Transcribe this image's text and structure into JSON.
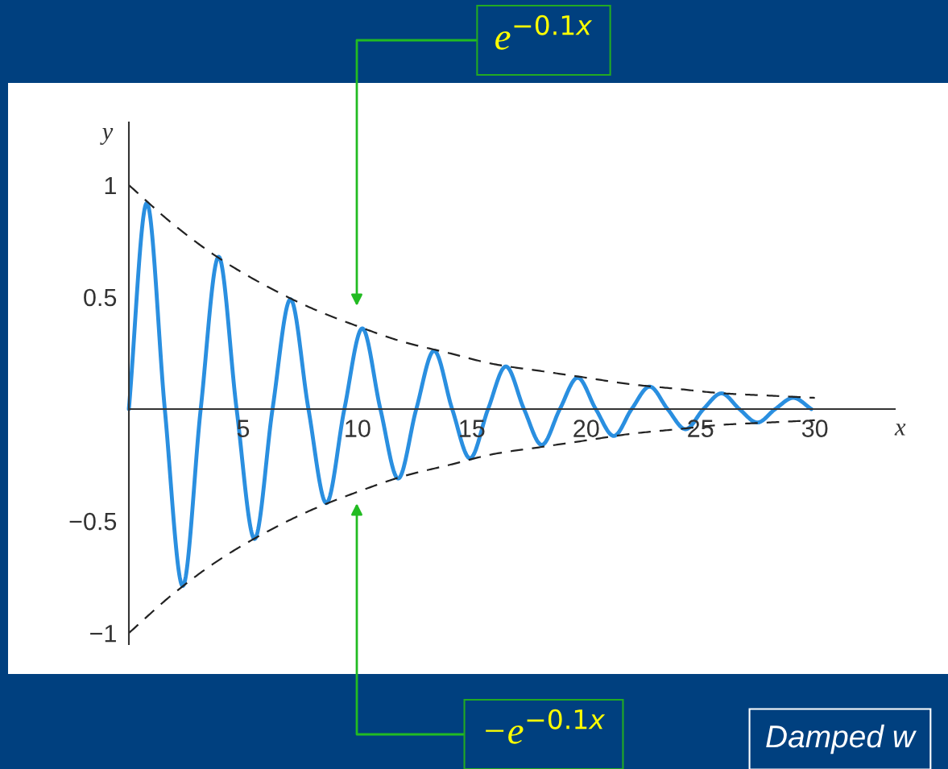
{
  "chart_data": {
    "type": "line",
    "xlabel": "x",
    "ylabel": "y",
    "xlim": [
      0,
      33.5
    ],
    "ylim": [
      -1.05,
      1.28
    ],
    "xticks": [
      5,
      10,
      15,
      20,
      25,
      30
    ],
    "yticks": [
      {
        "value": -1,
        "label": "−1"
      },
      {
        "value": -0.5,
        "label": "−0.5"
      },
      0.5,
      1
    ],
    "grid": false,
    "series": [
      {
        "color": "#2a8fe0",
        "line_style": "solid",
        "x": [
          0,
          0.785,
          1.571,
          2.356,
          3.142,
          3.927,
          4.712,
          5.498,
          6.283,
          7.069,
          7.854,
          8.639,
          9.425,
          10.21,
          11.0,
          11.78,
          12.57,
          13.35,
          14.14,
          14.92,
          15.71,
          16.49,
          17.28,
          18.06,
          18.85,
          19.63,
          20.42,
          21.21,
          21.99,
          22.78,
          23.56,
          24.35,
          25.13,
          25.92,
          26.7,
          27.49,
          28.27,
          29.06,
          29.85
        ],
        "values": [
          0,
          0.92,
          0,
          -0.79,
          0,
          0.68,
          0,
          -0.58,
          0,
          0.49,
          0,
          -0.42,
          0,
          0.36,
          0,
          -0.31,
          0,
          0.26,
          0,
          -0.22,
          0,
          0.19,
          0,
          -0.16,
          0,
          0.14,
          0,
          -0.12,
          0,
          0.1,
          0,
          -0.09,
          0,
          0.07,
          0,
          -0.06,
          0,
          0.05,
          0
        ]
      },
      {
        "color": "#222222",
        "line_style": "dashed",
        "x": [
          0,
          2,
          4,
          6,
          8,
          10,
          12,
          14,
          16,
          18,
          20,
          22,
          24,
          26,
          28,
          30
        ],
        "values": [
          1,
          0.82,
          0.67,
          0.55,
          0.45,
          0.37,
          0.3,
          0.25,
          0.2,
          0.17,
          0.14,
          0.11,
          0.09,
          0.07,
          0.06,
          0.05
        ]
      },
      {
        "color": "#222222",
        "line_style": "dashed",
        "x": [
          0,
          2,
          4,
          6,
          8,
          10,
          12,
          14,
          16,
          18,
          20,
          22,
          24,
          26,
          28,
          30
        ],
        "values": [
          -1,
          -0.82,
          -0.67,
          -0.55,
          -0.45,
          -0.37,
          -0.3,
          -0.25,
          -0.2,
          -0.17,
          -0.14,
          -0.11,
          -0.09,
          -0.07,
          -0.06,
          -0.05
        ]
      }
    ],
    "annotations": [
      "e$^{−0.1x}$",
      "−e$^{−0.1x}$",
      "Damped w"
    ]
  }
}
